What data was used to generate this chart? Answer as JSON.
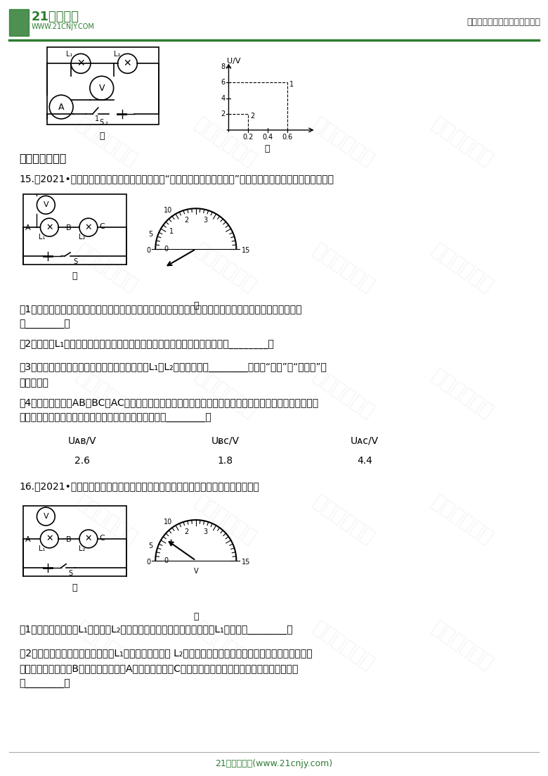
{
  "page_width": 7.8,
  "page_height": 11.03,
  "bg_color": "#ffffff",
  "header_logo_text": "21世纪教育",
  "header_logo_subtext": "WWW.21CNJY.COM",
  "header_right_text": "中小学教育资源及组卷应用平台",
  "header_line_color": "#2e7d32",
  "green_color": "#2e7d32",
  "text_color": "#000000",
  "section_title": "三、实验探究题",
  "q15_intro": "15.（2021•成都模拟）芳芳实验小组的同学们在“探究串联电路电压的规律”实验中，设计了如图甲所示的电路。",
  "q15_s1": "（1）在连接电路时发现，刚接好最后一根导线，电压表的指针就发生了偏转，由此可知在连接电路时，他忘",
  "q15_s1b": "了________。",
  "q15_s2": "（2）在测量L₁两端的电压时，芳芳发现电压表的指针偏转如图乙所示，原因是________。",
  "q15_s3": "（3）芳芳为了使探究得出的结论具有普遍意义，L₁、L₂应该选择规格________（选填“相同”或“不相同”）",
  "q15_s3b": "的小灯泡；",
  "q15_s4": "（4）芳芳分别测出AB、BC、AC间的电压并记录在如下表格中，分析实验数据得出结论：串联电路总电压等",
  "q15_s4b": "于各部分电路两端电压之和。请对芳芳的做法进行评价：________。",
  "q16_intro": "16.（2021•成都模拟）如图甲所示，小明同学对串联电路中电压的规律进行了探究。",
  "q16_s1": "（1）闭合开关，发现L₁不发光，L₂比较亮，电压表示数为零，则小灯泡L₁的故障是________。",
  "q16_s2": "（2）排除故障后，小明正确测出了L₁两端的电压，在测 L₂两端的电压时，小明为了节省时间，打算采用以下",
  "q16_s2b": "方法：电压表所接的B接点不动，只断开A接点，并改接到C接点上。此操作可能会导致电压表出现的现象",
  "q16_s2c": "是________。",
  "footer_text": "21世纪教育网(www.21cnjy.com)"
}
